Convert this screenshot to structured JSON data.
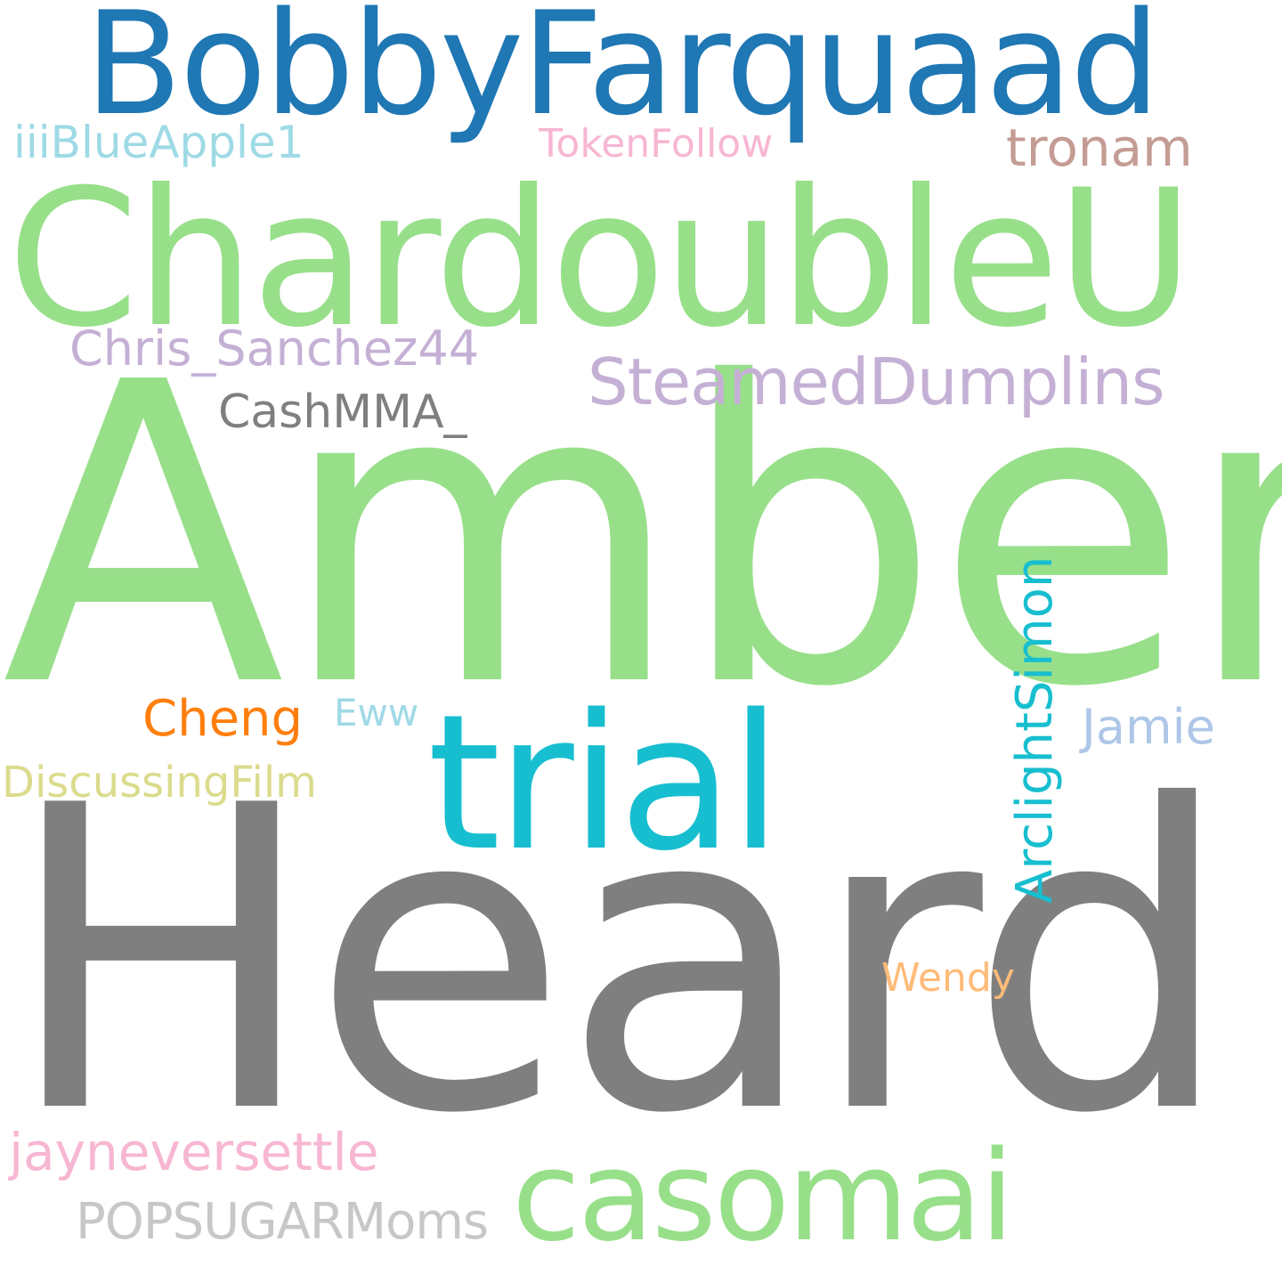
{
  "words": [
    {
      "id": "amber",
      "text": "Amber",
      "color": "#98df8a"
    },
    {
      "id": "heard",
      "text": "Heard",
      "color": "#7f7f7f"
    },
    {
      "id": "chardoubleu",
      "text": "ChardoubleU",
      "color": "#98df8a"
    },
    {
      "id": "bobbyfarquaad",
      "text": "BobbyFarquaad",
      "color": "#1f77b4"
    },
    {
      "id": "trial",
      "text": "trial",
      "color": "#17becf"
    },
    {
      "id": "casomai",
      "text": "casomai",
      "color": "#98df8a"
    },
    {
      "id": "steameddumplins",
      "text": "SteamedDumplins",
      "color": "#c5b0d5"
    },
    {
      "id": "arclightsimon",
      "text": "ArclightSimon",
      "color": "#17becf"
    },
    {
      "id": "chris-sanchez44",
      "text": "Chris_Sanchez44",
      "color": "#c5b0d5"
    },
    {
      "id": "jayneversettle",
      "text": "jayneversettle",
      "color": "#f7b6d2"
    },
    {
      "id": "popsugarmoms",
      "text": "POPSUGARMoms",
      "color": "#c7c7c7"
    },
    {
      "id": "iiiblueapple1",
      "text": "iiiBlueApple1",
      "color": "#9edae5"
    },
    {
      "id": "tokenfollow",
      "text": "TokenFollow",
      "color": "#f7b6d2"
    },
    {
      "id": "tronam",
      "text": "tronam",
      "color": "#c49c94"
    },
    {
      "id": "cashmma",
      "text": "CashMMA_",
      "color": "#7f7f7f"
    },
    {
      "id": "cheng",
      "text": "Cheng",
      "color": "#ff7f0e"
    },
    {
      "id": "eww",
      "text": "Eww",
      "color": "#9edae5"
    },
    {
      "id": "jamie",
      "text": "Jamie",
      "color": "#aec7e8"
    },
    {
      "id": "discussingfilm",
      "text": "DiscussingFilm",
      "color": "#dbdb8d"
    },
    {
      "id": "wendy",
      "text": "Wendy",
      "color": "#ffbb78"
    }
  ]
}
